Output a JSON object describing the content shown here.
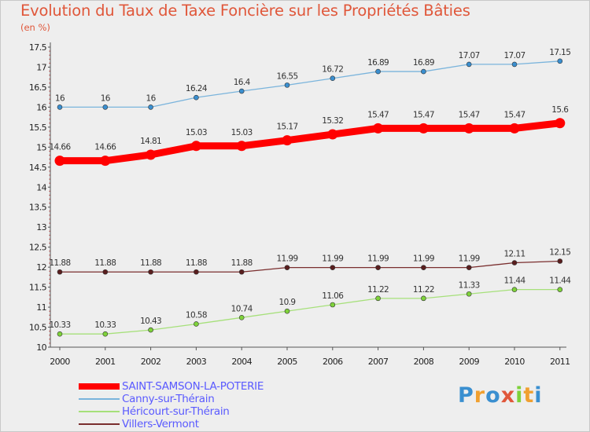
{
  "title": "Evolution du Taux de Taxe Foncière sur les Propriétés Bâties",
  "unit_label": "(en %)",
  "brand": "Proxiti",
  "chart_data": {
    "type": "line",
    "x": [
      "2000",
      "2001",
      "2002",
      "2003",
      "2004",
      "2005",
      "2006",
      "2007",
      "2008",
      "2009",
      "2010",
      "2011"
    ],
    "ylim": [
      10,
      17.5
    ],
    "yticks": [
      "10",
      "10.5",
      "11",
      "11.5",
      "12",
      "12.5",
      "13",
      "13.5",
      "14",
      "14.5",
      "15",
      "15.5",
      "16",
      "16.5",
      "17",
      "17.5"
    ],
    "grid": false,
    "legend_position": "bottom-left",
    "series": [
      {
        "name": "SAINT-SAMSON-LA-POTERIE",
        "color": "#ff0000",
        "highlight": true,
        "values": [
          14.66,
          14.66,
          14.81,
          15.03,
          15.03,
          15.17,
          15.32,
          15.47,
          15.47,
          15.47,
          15.47,
          15.6
        ],
        "labels": [
          "14.66",
          "14.66",
          "14.81",
          "15.03",
          "15.03",
          "15.17",
          "15.32",
          "15.47",
          "15.47",
          "15.47",
          "15.47",
          "15.6"
        ]
      },
      {
        "name": "Canny-sur-Thérain",
        "color": "#7ab4dc",
        "marker": "#3a8fd0",
        "values": [
          16,
          16,
          16,
          16.24,
          16.4,
          16.55,
          16.72,
          16.89,
          16.89,
          17.07,
          17.07,
          17.15
        ],
        "labels": [
          "16",
          "16",
          "16",
          "16.24",
          "16.4",
          "16.55",
          "16.72",
          "16.89",
          "16.89",
          "17.07",
          "17.07",
          "17.15"
        ]
      },
      {
        "name": "Héricourt-sur-Thérain",
        "color": "#a6e07a",
        "marker": "#7ed23a",
        "values": [
          10.33,
          10.33,
          10.43,
          10.58,
          10.74,
          10.9,
          11.06,
          11.22,
          11.22,
          11.33,
          11.44,
          11.44
        ],
        "labels": [
          "10.33",
          "10.33",
          "10.43",
          "10.58",
          "10.74",
          "10.9",
          "11.06",
          "11.22",
          "11.22",
          "11.33",
          "11.44",
          "11.44"
        ]
      },
      {
        "name": "Villers-Vermont",
        "color": "#7a2e2e",
        "marker": "#5a1e1e",
        "values": [
          11.88,
          11.88,
          11.88,
          11.88,
          11.88,
          11.99,
          11.99,
          11.99,
          11.99,
          11.99,
          12.11,
          12.15
        ],
        "labels": [
          "11.88",
          "11.88",
          "11.88",
          "11.88",
          "11.88",
          "11.99",
          "11.99",
          "11.99",
          "11.99",
          "11.99",
          "12.11",
          "12.15"
        ]
      }
    ]
  }
}
